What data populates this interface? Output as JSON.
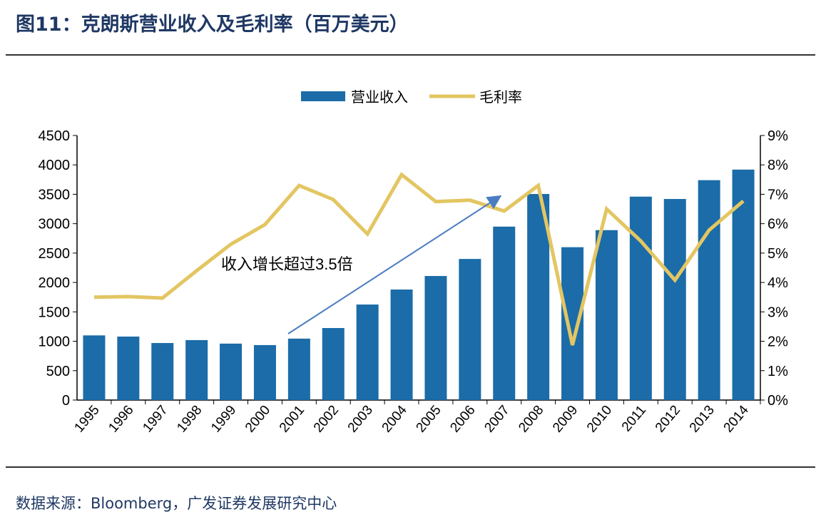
{
  "title": "图11：克朗斯营业收入及毛利率（百万美元）",
  "source": "数据来源：Bloomberg，广发证券发展研究中心",
  "colors": {
    "bar": "#1b6ca8",
    "line": "#e3c662",
    "arrow": "#4a7cc0",
    "title": "#1f3864"
  },
  "chart_data": {
    "type": "bar+line",
    "categories": [
      "1995",
      "1996",
      "1997",
      "1998",
      "1999",
      "2000",
      "2001",
      "2002",
      "2003",
      "2004",
      "2005",
      "2006",
      "2007",
      "2008",
      "2009",
      "2010",
      "2011",
      "2012",
      "2013",
      "2014"
    ],
    "series": [
      {
        "name": "营业收入",
        "type": "bar",
        "axis": "left",
        "values": [
          1100,
          1080,
          970,
          1020,
          960,
          935,
          1045,
          1225,
          1625,
          1880,
          2110,
          2400,
          2950,
          3505,
          2600,
          2890,
          3460,
          3420,
          3740,
          3920
        ]
      },
      {
        "name": "毛利率",
        "type": "line",
        "axis": "right",
        "values": [
          3.5,
          3.52,
          3.47,
          4.4,
          5.3,
          5.97,
          7.3,
          6.82,
          5.65,
          7.67,
          6.75,
          6.8,
          6.43,
          7.3,
          1.87,
          6.5,
          5.41,
          4.08,
          5.78,
          6.77
        ]
      }
    ],
    "left_axis": {
      "range": [
        0,
        4500
      ],
      "ticks": [
        "0",
        "500",
        "1000",
        "1500",
        "2000",
        "2500",
        "3000",
        "3500",
        "4000",
        "4500"
      ]
    },
    "right_axis": {
      "range": [
        0,
        9
      ],
      "ticks": [
        "0%",
        "1%",
        "2%",
        "3%",
        "4%",
        "5%",
        "6%",
        "7%",
        "8%",
        "9%"
      ]
    },
    "legend_position": "top",
    "annotation": "收入增长超过3.5倍",
    "grid": false
  }
}
